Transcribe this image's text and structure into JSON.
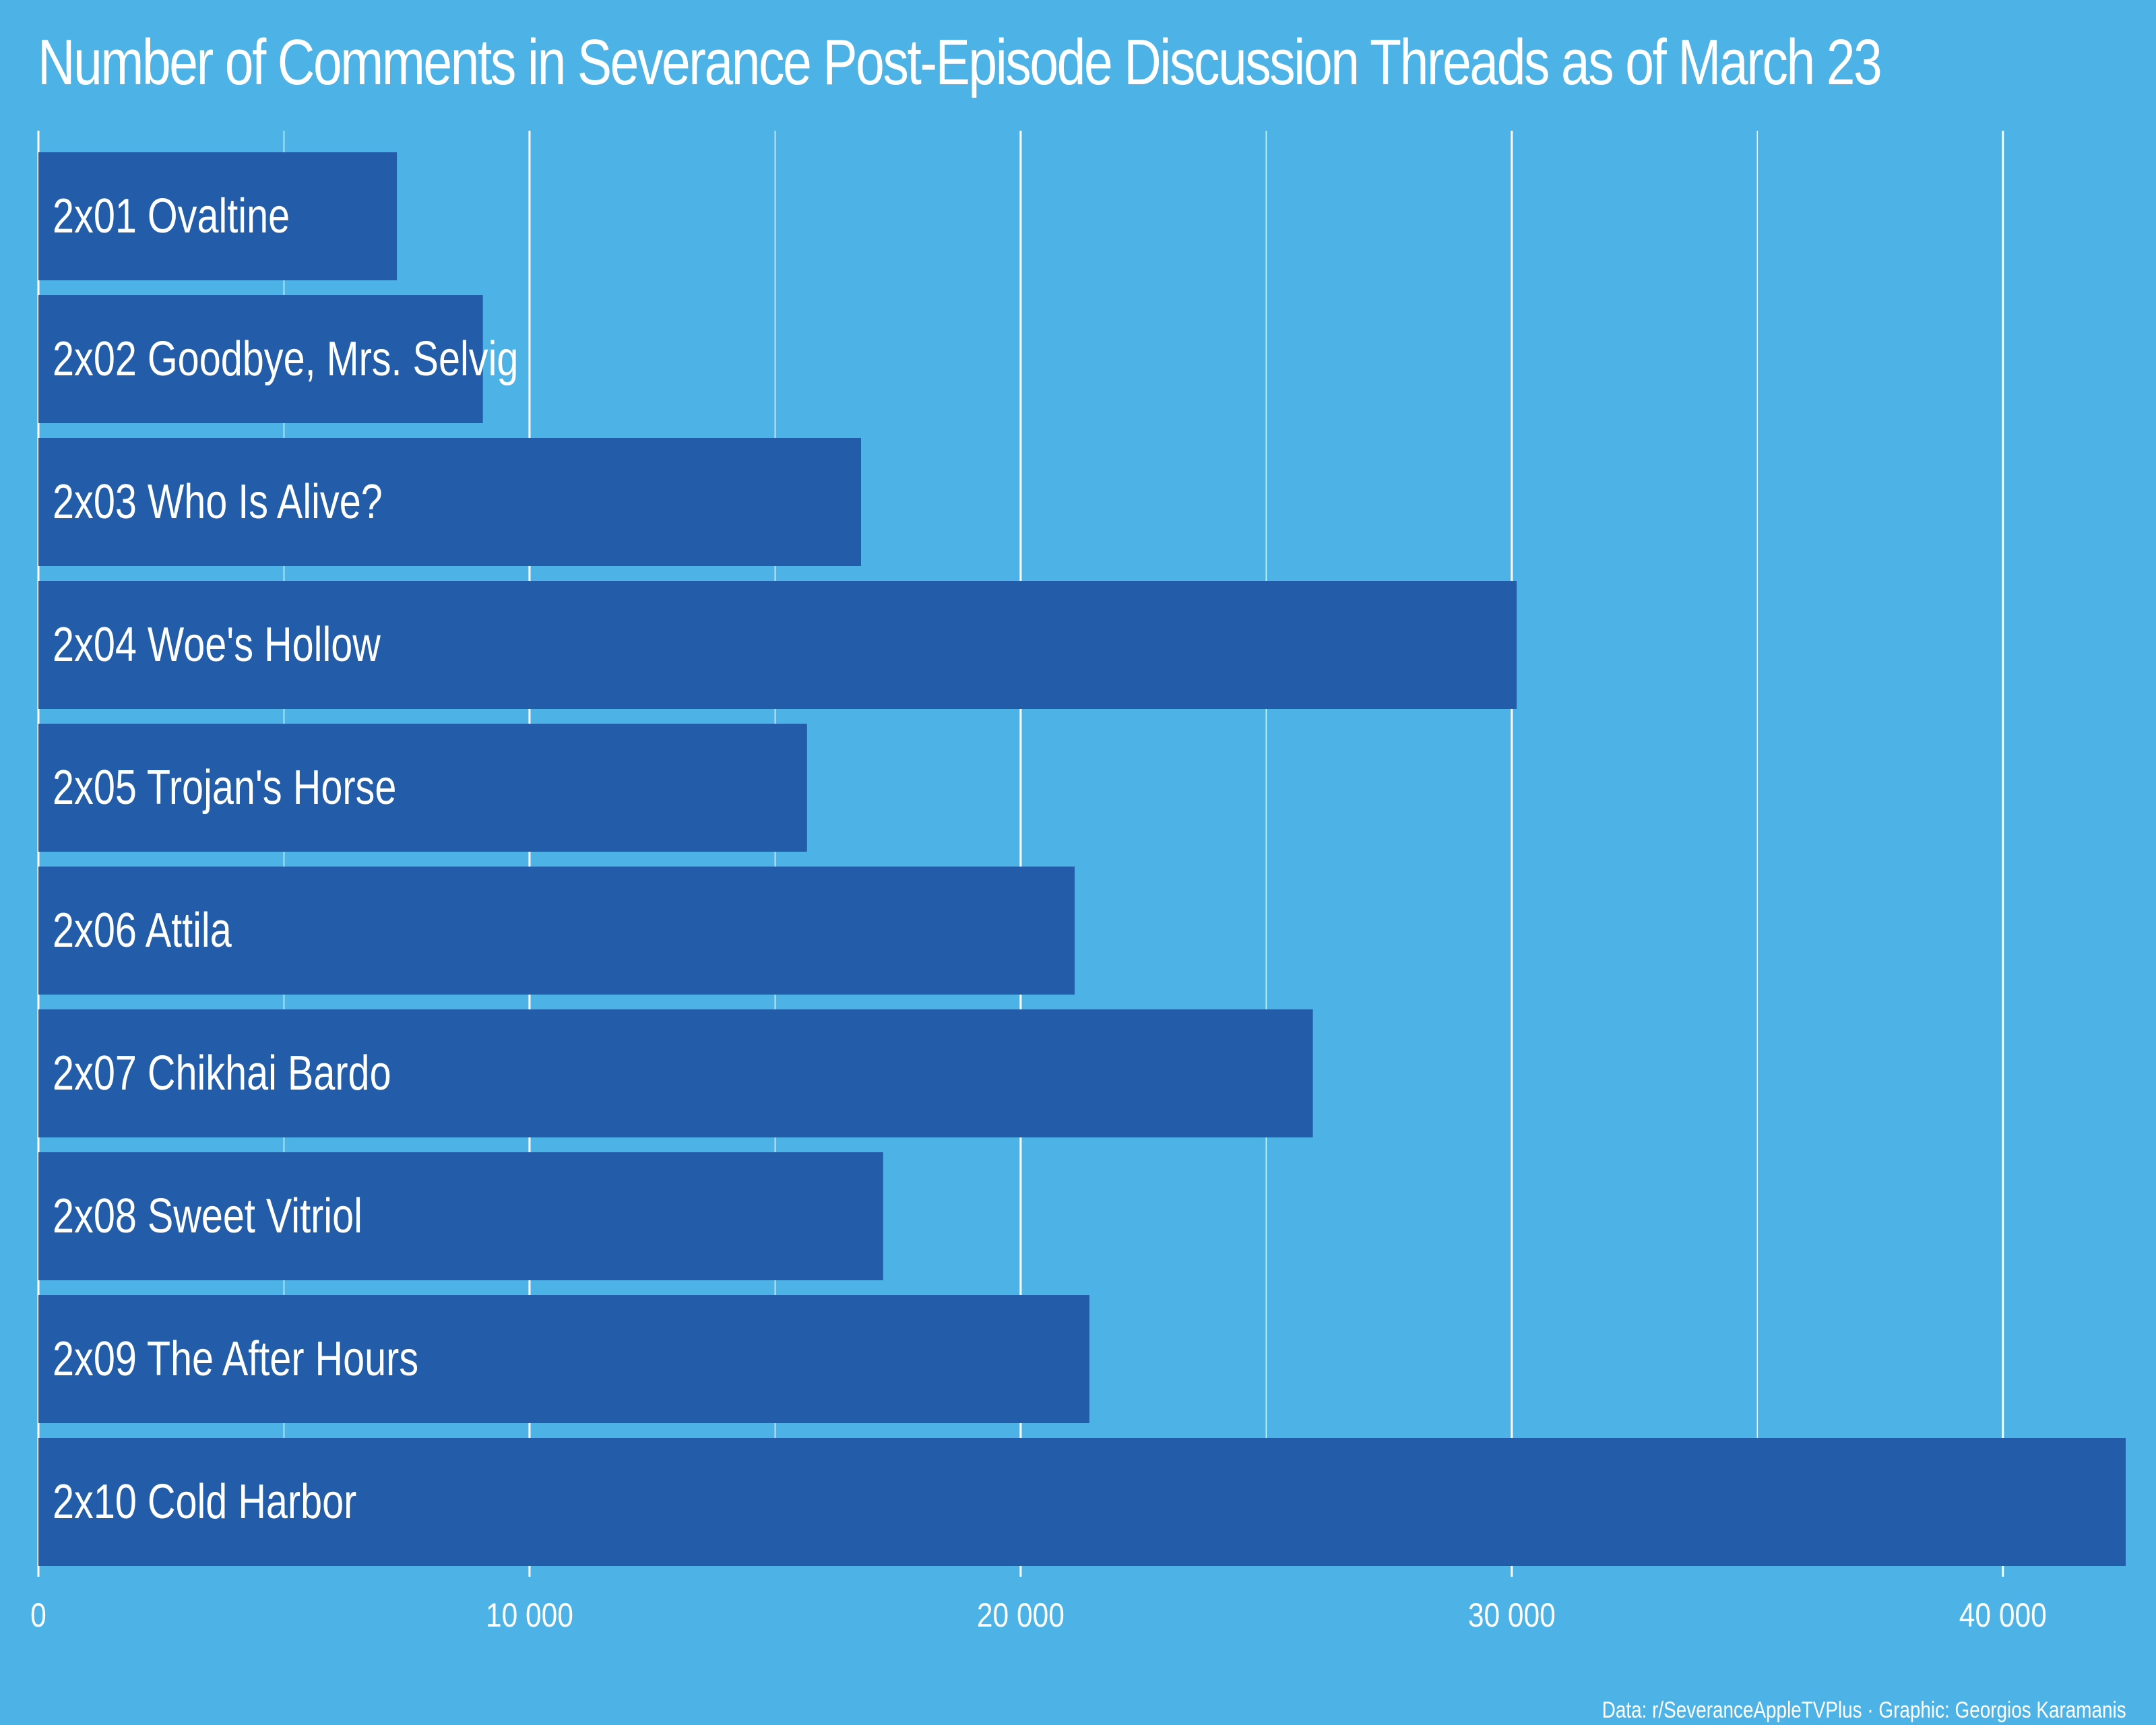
{
  "colors": {
    "background": "#4db3e6",
    "bar": "#235ca8",
    "grid": "#ffffff",
    "text": "#ffffff"
  },
  "title": "Number of Comments in Severance Post-Episode Discussion Threads as of March 23",
  "caption": "Data: r/SeveranceAppleTVPlus · Graphic: Georgios Karamanis",
  "chart_data": {
    "type": "bar",
    "orientation": "horizontal",
    "title": "Number of Comments in Severance Post-Episode Discussion Threads as of March 23",
    "xlabel": "",
    "ylabel": "",
    "xlim": [
      0,
      42500
    ],
    "x_ticks": [
      0,
      10000,
      20000,
      30000,
      40000
    ],
    "x_tick_labels": [
      "0",
      "10 000",
      "20 000",
      "30 000",
      "40 000"
    ],
    "minor_grid_step": 5000,
    "grid": true,
    "categories": [
      "2x01 Ovaltine",
      "2x02 Goodbye, Mrs. Selvig",
      "2x03 Who Is Alive?",
      "2x04 Woe's Hollow",
      "2x05 Trojan's Horse",
      "2x06 Attila",
      "2x07 Chikhai Bardo",
      "2x08 Sweet Vitriol",
      "2x09 The After Hours",
      "2x10 Cold Harbor"
    ],
    "values": [
      7300,
      9050,
      16750,
      30100,
      15650,
      21100,
      25950,
      17200,
      21400,
      42500
    ]
  }
}
